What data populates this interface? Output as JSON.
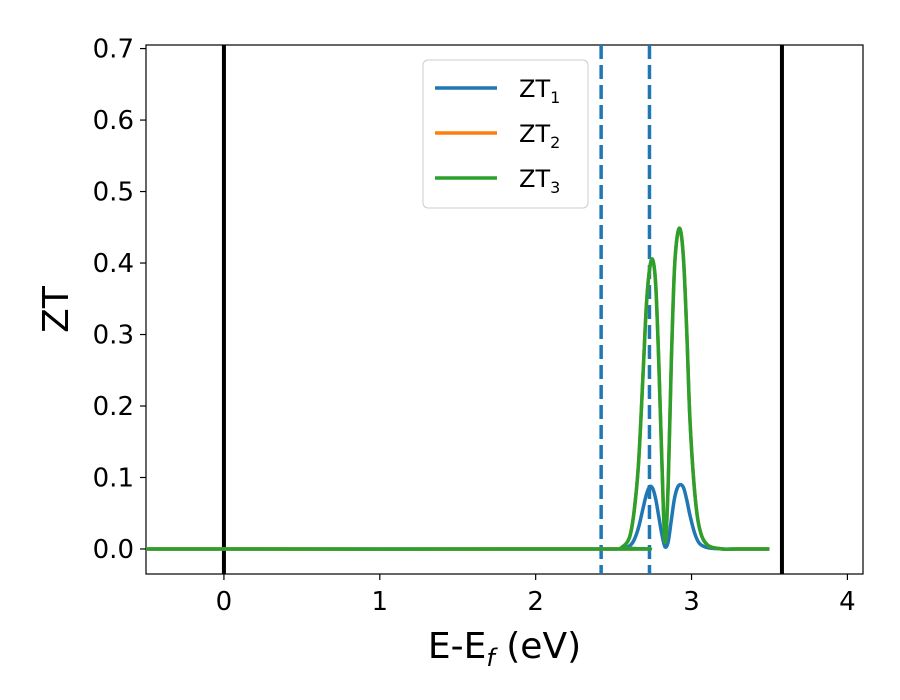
{
  "chart_data": {
    "type": "line",
    "title": "",
    "xlabel": "E-E",
    "xlabel_subscript": "f",
    "xlabel_unit": " (eV)",
    "ylabel": "ZT",
    "xlim": [
      -0.5,
      4.1
    ],
    "ylim": [
      -0.035,
      0.705
    ],
    "xticks": [
      0,
      1,
      2,
      3,
      4
    ],
    "xtick_labels": [
      "0",
      "1",
      "2",
      "3",
      "4"
    ],
    "yticks": [
      0.0,
      0.1,
      0.2,
      0.3,
      0.4,
      0.5,
      0.6,
      0.7
    ],
    "ytick_labels": [
      "0.0",
      "0.1",
      "0.2",
      "0.3",
      "0.4",
      "0.5",
      "0.6",
      "0.7"
    ],
    "grid": false,
    "legend_position": "upper-center",
    "vertical_lines": [
      {
        "x": 0.0,
        "style": "solid",
        "color": "#000000"
      },
      {
        "x": 3.58,
        "style": "solid",
        "color": "#000000"
      },
      {
        "x": 2.42,
        "style": "dashed",
        "color": "#1f77b4"
      },
      {
        "x": 2.73,
        "style": "dashed",
        "color": "#1f77b4"
      }
    ],
    "x": [
      -0.5,
      2.5,
      2.55,
      2.6,
      2.63,
      2.66,
      2.69,
      2.71,
      2.73,
      2.75,
      2.77,
      2.79,
      2.81,
      2.83,
      2.85,
      2.87,
      2.89,
      2.91,
      2.93,
      2.95,
      2.97,
      2.99,
      3.02,
      3.05,
      3.1,
      3.2,
      3.3,
      3.5
    ],
    "series": [
      {
        "name": "ZT",
        "name_subscript": "1",
        "color": "#1f77b4",
        "values": [
          0.0,
          0.0,
          0.0005,
          0.004,
          0.012,
          0.03,
          0.058,
          0.076,
          0.087,
          0.085,
          0.07,
          0.045,
          0.02,
          0.003,
          0.01,
          0.04,
          0.07,
          0.086,
          0.09,
          0.085,
          0.068,
          0.047,
          0.022,
          0.008,
          0.002,
          0.0,
          0.0,
          0.0
        ]
      },
      {
        "name": "ZT",
        "name_subscript": "2",
        "color": "#ff7f0e",
        "values": [
          0.0,
          0.0,
          0.002,
          0.015,
          0.05,
          0.12,
          0.25,
          0.34,
          0.39,
          0.405,
          0.37,
          0.26,
          0.12,
          0.01,
          0.09,
          0.26,
          0.39,
          0.44,
          0.445,
          0.4,
          0.3,
          0.18,
          0.08,
          0.03,
          0.006,
          0.0,
          0.0,
          0.0
        ]
      },
      {
        "name": "ZT",
        "name_subscript": "3",
        "color": "#2ca02c",
        "values": [
          0.0,
          0.0,
          0.002,
          0.015,
          0.05,
          0.12,
          0.25,
          0.34,
          0.39,
          0.405,
          0.37,
          0.26,
          0.12,
          0.01,
          0.09,
          0.26,
          0.39,
          0.44,
          0.445,
          0.4,
          0.3,
          0.18,
          0.08,
          0.03,
          0.006,
          0.0,
          0.0,
          0.0
        ]
      }
    ]
  }
}
